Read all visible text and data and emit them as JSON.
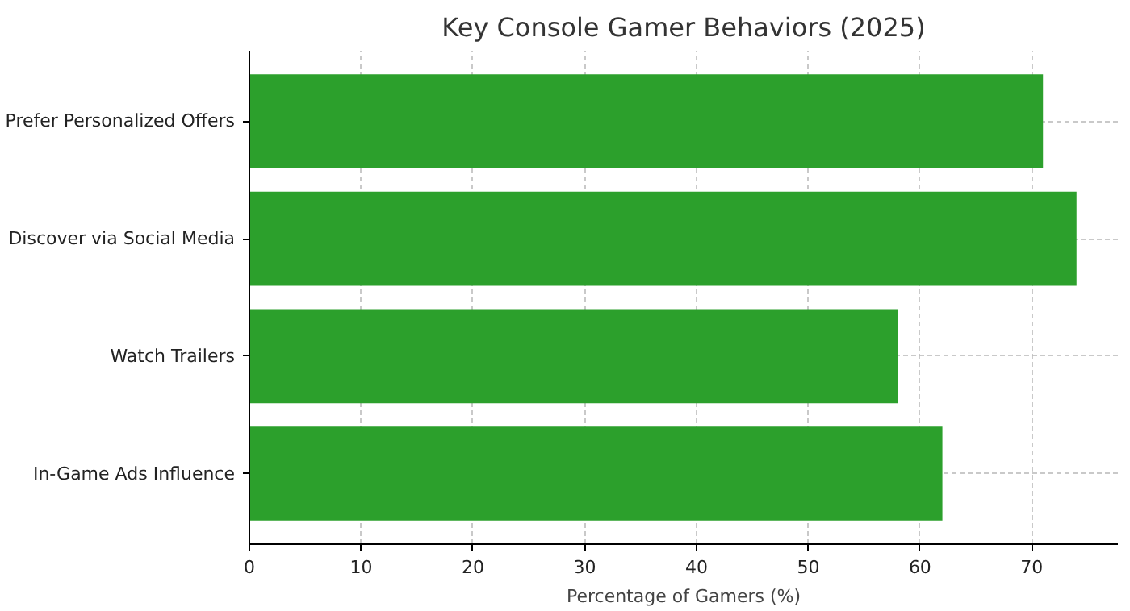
{
  "chart_data": {
    "type": "bar",
    "orientation": "horizontal",
    "title": "Key Console Gamer Behaviors (2025)",
    "xlabel": "Percentage of Gamers (%)",
    "categories": [
      "Prefer Personalized Offers",
      "Discover via Social Media",
      "Watch Trailers",
      "In-Game Ads Influence"
    ],
    "values": [
      71,
      74,
      58,
      62
    ],
    "color": "#2ca02c",
    "xlim": [
      0,
      77.7
    ],
    "xticks": [
      0,
      10,
      20,
      30,
      40,
      50,
      60,
      70
    ],
    "grid": true
  }
}
